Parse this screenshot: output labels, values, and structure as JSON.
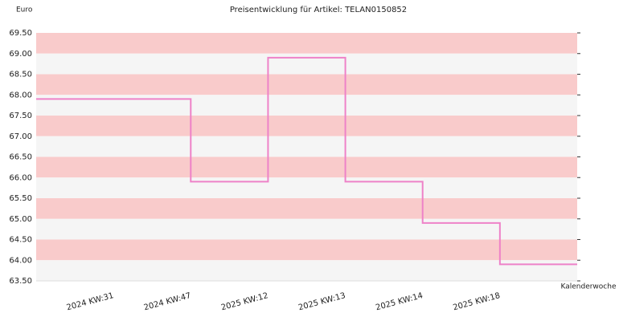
{
  "chart_data": {
    "type": "step",
    "title": "Preisentwicklung für Artikel: TELAN0150852",
    "y_label": "Euro",
    "x_label": "Kalenderwoche",
    "categories": [
      "2024 KW:31",
      "2024 KW:47",
      "2025 KW:12",
      "2025 KW:13",
      "2025 KW:14",
      "2025 KW:18"
    ],
    "values": [
      67.9,
      65.9,
      68.9,
      65.9,
      64.9,
      63.9
    ],
    "color": "#ee82c8",
    "band_colors": [
      "#f9cbcb",
      "#f5f5f5"
    ],
    "ylim": [
      63.5,
      69.5
    ],
    "yticks": [
      {
        "value": 63.5,
        "label": "63.50"
      },
      {
        "value": 64,
        "label": "64.00"
      },
      {
        "value": 64.5,
        "label": "64.50"
      },
      {
        "value": 65,
        "label": "65.00"
      },
      {
        "value": 65.5,
        "label": "65.50"
      },
      {
        "value": 66,
        "label": "66.00"
      },
      {
        "value": 66.5,
        "label": "66.50"
      },
      {
        "value": 67,
        "label": "67.00"
      },
      {
        "value": 67.5,
        "label": "67.50"
      },
      {
        "value": 68,
        "label": "68.00"
      },
      {
        "value": 68.5,
        "label": "68.50"
      },
      {
        "value": 69,
        "label": "69.00"
      },
      {
        "value": 69.5,
        "label": "69.50"
      }
    ]
  }
}
